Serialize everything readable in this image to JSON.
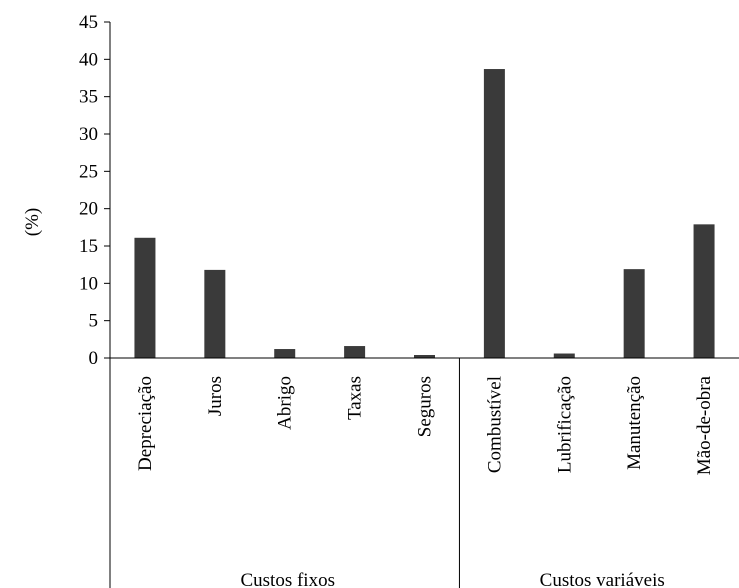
{
  "chart_data": {
    "type": "bar",
    "title": "",
    "xlabel": "",
    "ylabel": "(%)",
    "ylim": [
      0,
      45
    ],
    "yticks": [
      0,
      5,
      10,
      15,
      20,
      25,
      30,
      35,
      40,
      45
    ],
    "categories": [
      "Depreciação",
      "Juros",
      "Abrigo",
      "Taxas",
      "Seguros",
      "Combustível",
      "Lubrificação",
      "Manutenção",
      "Mão-de-obra"
    ],
    "values": [
      16.1,
      11.8,
      1.2,
      1.6,
      0.4,
      38.7,
      0.6,
      11.9,
      17.9
    ],
    "groups": [
      {
        "label": "Custos fixos",
        "count": 5
      },
      {
        "label": "Custos variáveis",
        "count": 4
      }
    ],
    "bar_color": "#3a3a3a",
    "grid": false,
    "legend": "none"
  }
}
